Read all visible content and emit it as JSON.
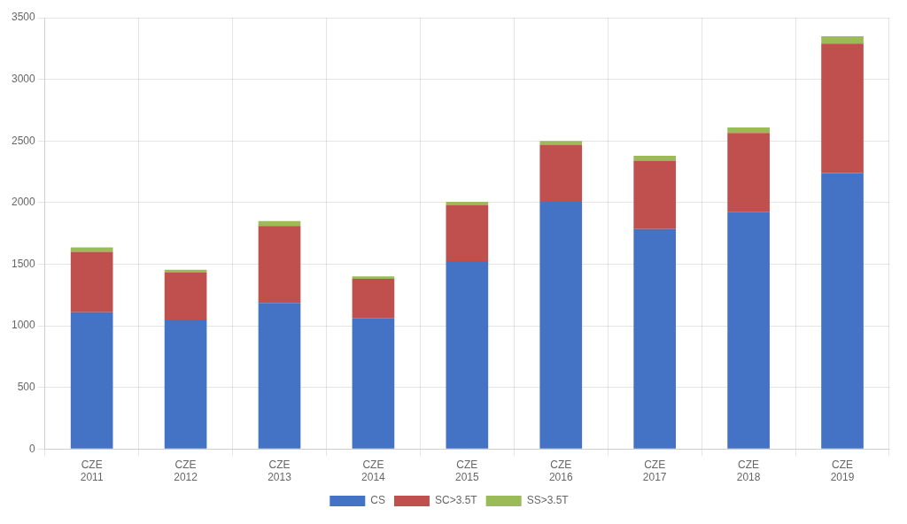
{
  "chart_data": {
    "type": "bar",
    "stacked": true,
    "categories": [
      "CZE\n2011",
      "CZE\n2012",
      "CZE\n2013",
      "CZE\n2014",
      "CZE\n2015",
      "CZE\n2016",
      "CZE\n2017",
      "CZE\n2018",
      "CZE\n2019"
    ],
    "series": [
      {
        "name": "CS",
        "color": "#4472c4",
        "values": [
          1110,
          1050,
          1185,
          1060,
          1525,
          2005,
          1785,
          1925,
          2240
        ]
      },
      {
        "name": "SC>3.5T",
        "color": "#c0504d",
        "values": [
          490,
          385,
          625,
          320,
          455,
          465,
          555,
          640,
          1050
        ]
      },
      {
        "name": "SS>3.5T",
        "color": "#9bbb59",
        "values": [
          35,
          20,
          40,
          20,
          25,
          30,
          40,
          45,
          60
        ]
      }
    ],
    "ylim": [
      0,
      3500
    ],
    "yticks": [
      0,
      500,
      1000,
      1500,
      2000,
      2500,
      3000,
      3500
    ],
    "grid": true,
    "legend": "bottom"
  }
}
